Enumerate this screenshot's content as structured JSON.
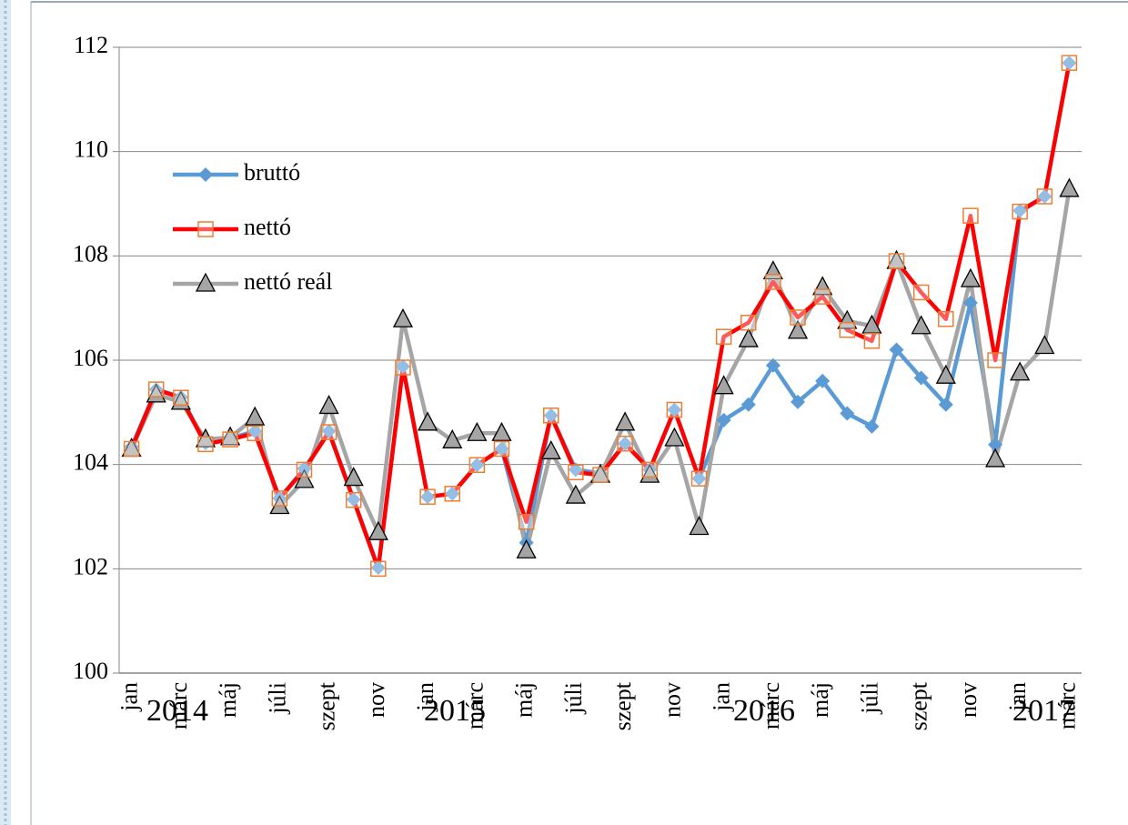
{
  "chart_data": {
    "type": "line",
    "categories": [
      "jan",
      null,
      "márc",
      null,
      "máj",
      null,
      "júli",
      null,
      "szept",
      null,
      "nov",
      null,
      "jan",
      null,
      "márc",
      null,
      "máj",
      null,
      "júli",
      null,
      "szept",
      null,
      "nov",
      null,
      "jan",
      null,
      "márc",
      null,
      "máj",
      null,
      "júli",
      null,
      "szept",
      null,
      "nov",
      null,
      "jan",
      null,
      "márc"
    ],
    "x_groups": [
      "2014",
      "2015",
      "2016",
      "2017"
    ],
    "series": [
      {
        "name": "bruttó",
        "color": "#5b9bd5",
        "marker": "diamond",
        "values": [
          104.34,
          105.44,
          105.29,
          104.41,
          104.5,
          104.64,
          103.35,
          103.92,
          104.64,
          103.33,
          102.02,
          105.88,
          103.38,
          103.44,
          103.99,
          104.3,
          102.5,
          104.94,
          103.9,
          103.83,
          104.4,
          103.9,
          105.05,
          103.73,
          104.85,
          105.15,
          105.9,
          105.2,
          105.6,
          104.98,
          104.73,
          106.2,
          105.66,
          105.15,
          107.1,
          104.38,
          108.87,
          109.14,
          111.7
        ]
      },
      {
        "name": "nettó",
        "color": "#ff0000",
        "marker_color": "#ed7d31",
        "marker": "square",
        "values": [
          104.3,
          105.44,
          105.28,
          104.39,
          104.48,
          104.6,
          103.35,
          103.9,
          104.62,
          103.32,
          102.0,
          105.86,
          103.38,
          103.44,
          103.99,
          104.3,
          102.9,
          104.94,
          103.85,
          103.8,
          104.4,
          103.9,
          105.05,
          103.73,
          106.45,
          106.72,
          107.5,
          106.82,
          107.22,
          106.58,
          106.37,
          107.9,
          107.3,
          106.79,
          108.77,
          106.0,
          108.85,
          109.14,
          111.7
        ]
      },
      {
        "name": "nettó reál",
        "color": "#a5a5a5",
        "marker": "triangle",
        "values": [
          104.3,
          105.34,
          105.2,
          104.48,
          104.52,
          104.9,
          103.2,
          103.7,
          105.12,
          103.74,
          102.7,
          106.78,
          104.8,
          104.46,
          104.6,
          104.6,
          102.35,
          104.25,
          103.4,
          103.8,
          104.8,
          103.8,
          104.5,
          102.8,
          105.5,
          106.4,
          107.7,
          106.56,
          107.4,
          106.75,
          106.66,
          107.9,
          106.65,
          105.7,
          107.55,
          104.1,
          105.76,
          106.27,
          109.28
        ]
      }
    ],
    "ylim": [
      100,
      112
    ],
    "yticks": [
      100,
      102,
      104,
      106,
      108,
      110,
      112
    ],
    "grid": true,
    "legend": "upper left"
  }
}
